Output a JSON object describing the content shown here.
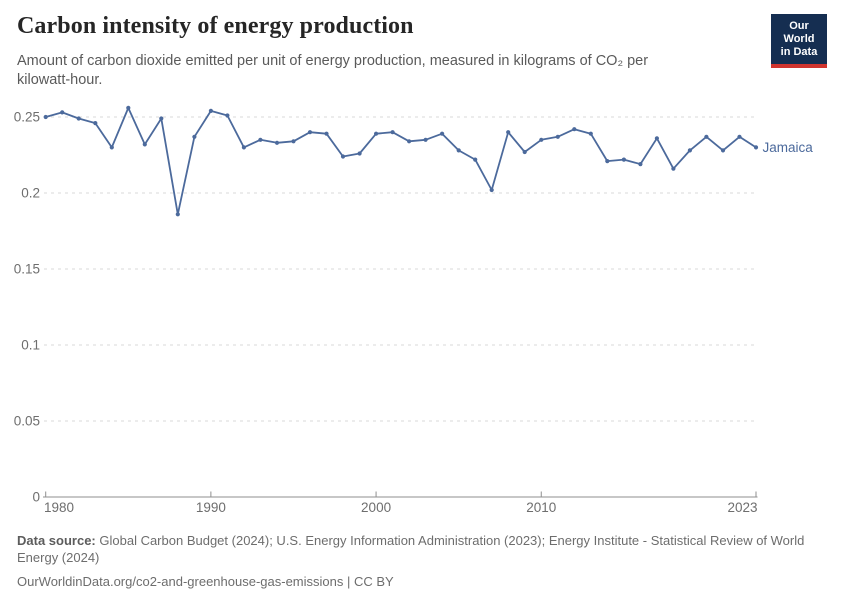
{
  "header": {
    "title": "Carbon intensity of energy production",
    "subtitle": "Amount of carbon dioxide emitted per unit of energy production, measured in kilograms of CO₂ per kilowatt-hour."
  },
  "logo": {
    "line1": "Our World",
    "line2": "in Data",
    "bg_color": "#152e51",
    "accent_color": "#d0342e"
  },
  "chart_data": {
    "type": "line",
    "title": "Carbon intensity of energy production",
    "xlabel": "",
    "ylabel": "",
    "xlim": [
      1980,
      2023
    ],
    "ylim": [
      0,
      0.265
    ],
    "grid": true,
    "x_ticks": [
      1980,
      1990,
      2000,
      2010,
      2023
    ],
    "y_ticks": [
      0,
      0.05,
      0.1,
      0.15,
      0.2,
      0.25
    ],
    "entity_label": "Jamaica",
    "series": [
      {
        "name": "Jamaica",
        "color": "#4C6A9C",
        "x": [
          1980,
          1981,
          1982,
          1983,
          1984,
          1985,
          1986,
          1987,
          1988,
          1989,
          1990,
          1991,
          1992,
          1993,
          1994,
          1995,
          1996,
          1997,
          1998,
          1999,
          2000,
          2001,
          2002,
          2003,
          2004,
          2005,
          2006,
          2007,
          2008,
          2009,
          2010,
          2011,
          2012,
          2013,
          2014,
          2015,
          2016,
          2017,
          2018,
          2019,
          2020,
          2021,
          2022,
          2023
        ],
        "values": [
          0.25,
          0.253,
          0.249,
          0.246,
          0.23,
          0.256,
          0.232,
          0.249,
          0.186,
          0.237,
          0.254,
          0.251,
          0.23,
          0.235,
          0.233,
          0.234,
          0.24,
          0.239,
          0.224,
          0.226,
          0.239,
          0.24,
          0.234,
          0.235,
          0.239,
          0.228,
          0.222,
          0.202,
          0.24,
          0.227,
          0.235,
          0.237,
          0.242,
          0.239,
          0.221,
          0.222,
          0.219,
          0.236,
          0.216,
          0.228,
          0.237,
          0.228,
          0.237,
          0.23
        ]
      }
    ]
  },
  "footer": {
    "source_label": "Data source:",
    "source_text": "Global Carbon Budget (2024); U.S. Energy Information Administration (2023); Energy Institute - Statistical Review of World Energy (2024)",
    "citation": "OurWorldinData.org/co2-and-greenhouse-gas-emissions | CC BY"
  }
}
